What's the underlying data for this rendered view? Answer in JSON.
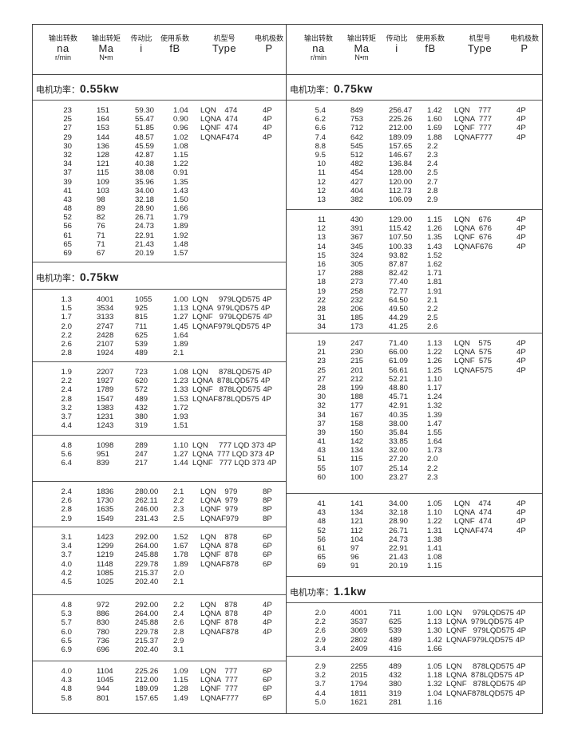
{
  "header": {
    "columns": [
      {
        "cn": "输出转数",
        "sym": "na",
        "unit": "r/min"
      },
      {
        "cn": "输出转矩",
        "sym": "Ma",
        "unit": "N•m"
      },
      {
        "cn": "传动比",
        "sym": "i",
        "unit": ""
      },
      {
        "cn": "使用系数",
        "sym": "fB",
        "unit": ""
      },
      {
        "cn": "机型号",
        "sym": "Type",
        "unit": ""
      },
      {
        "cn": "电机极数",
        "sym": "P",
        "unit": ""
      }
    ]
  },
  "left": [
    {
      "kind": "title",
      "label": "电机功率：",
      "power": "0.55kw"
    },
    {
      "kind": "group",
      "rows": [
        [
          "23",
          "151",
          "59.30",
          "1.04"
        ],
        [
          "25",
          "164",
          "55.47",
          "0.90"
        ],
        [
          "27",
          "153",
          "51.85",
          "0.96"
        ],
        [
          "29",
          "144",
          "48.57",
          "1.02"
        ],
        [
          "30",
          "136",
          "45.59",
          "1.08"
        ],
        [
          "32",
          "128",
          "42.87",
          "1.15"
        ],
        [
          "34",
          "121",
          "40.38",
          "1.22"
        ],
        [
          "37",
          "115",
          "38.08",
          "0.91"
        ],
        [
          "39",
          "109",
          "35.96",
          "1.35"
        ],
        [
          "41",
          "103",
          "34.00",
          "1.43"
        ],
        [
          "43",
          "98",
          "32.18",
          "1.50"
        ],
        [
          "48",
          "89",
          "28.90",
          "1.66"
        ],
        [
          "52",
          "82",
          "26.71",
          "1.79"
        ],
        [
          "56",
          "76",
          "24.73",
          "1.89"
        ],
        [
          "61",
          "71",
          "22.91",
          "1.92"
        ],
        [
          "65",
          "71",
          "21.43",
          "1.48"
        ],
        [
          "69",
          "67",
          "20.19",
          "1.57"
        ]
      ],
      "types": [
        [
          "LQN    474",
          "4P"
        ],
        [
          "LQNA  474",
          "4P"
        ],
        [
          "LQNF  474",
          "4P"
        ],
        [
          "LQNAF474",
          "4P"
        ]
      ]
    },
    {
      "kind": "title",
      "label": "电机功率：",
      "power": "0.75kw"
    },
    {
      "kind": "group",
      "wide": true,
      "rows": [
        [
          "1.3",
          "4001",
          "1055",
          "1.00"
        ],
        [
          "1.5",
          "3534",
          "925",
          "1.13"
        ],
        [
          "1.7",
          "3133",
          "815",
          "1.27"
        ],
        [
          "2.0",
          "2747",
          "711",
          "1.45"
        ],
        [
          "2.2",
          "2428",
          "625",
          "1.64"
        ],
        [
          "2.6",
          "2107",
          "539",
          "1.89"
        ],
        [
          "2.8",
          "1924",
          "489",
          "2.1"
        ]
      ],
      "types": [
        [
          "LQN     979LQD575",
          "4P"
        ],
        [
          "LQNA  979LQD575",
          "4P"
        ],
        [
          "LQNF   979LQD575",
          "4P"
        ],
        [
          "LQNAF979LQD575",
          "4P"
        ]
      ]
    },
    {
      "kind": "group",
      "wide": true,
      "rows": [
        [
          "1.9",
          "2207",
          "723",
          "1.08"
        ],
        [
          "2.2",
          "1927",
          "620",
          "1.23"
        ],
        [
          "2.4",
          "1789",
          "572",
          "1.33"
        ],
        [
          "2.8",
          "1547",
          "489",
          "1.53"
        ],
        [
          "3.2",
          "1383",
          "432",
          "1.72"
        ],
        [
          "3.7",
          "1231",
          "380",
          "1.93"
        ],
        [
          "4.4",
          "1243",
          "319",
          "1.51"
        ]
      ],
      "types": [
        [
          "LQN     878LQD575",
          "4P"
        ],
        [
          "LQNA  878LQD575",
          "4P"
        ],
        [
          "LQNF   878LQD575",
          "4P"
        ],
        [
          "LQNAF878LQD575",
          "4P"
        ]
      ]
    },
    {
      "kind": "group",
      "wide": true,
      "rows": [
        [
          "4.8",
          "1098",
          "289",
          "1.10"
        ],
        [
          "5.6",
          "951",
          "247",
          "1.27"
        ],
        [
          "6.4",
          "839",
          "217",
          "1.44"
        ]
      ],
      "types": [
        [
          "LQN     777 LQD 373",
          "4P"
        ],
        [
          "LQNA  777 LQD 373",
          "4P"
        ],
        [
          "LQNF   777 LQD 373",
          "4P"
        ]
      ]
    },
    {
      "kind": "group",
      "rows": [
        [
          "2.4",
          "1836",
          "280.00",
          "2.1"
        ],
        [
          "2.6",
          "1730",
          "262.11",
          "2.2"
        ],
        [
          "2.8",
          "1635",
          "246.00",
          "2.3"
        ],
        [
          "2.9",
          "1549",
          "231.43",
          "2.5"
        ]
      ],
      "types": [
        [
          "LQN    979",
          "8P"
        ],
        [
          "LQNA  979",
          "8P"
        ],
        [
          "LQNF  979",
          "8P"
        ],
        [
          "LQNAF979",
          "8P"
        ]
      ]
    },
    {
      "kind": "group",
      "rows": [
        [
          "3.1",
          "1423",
          "292.00",
          "1.52"
        ],
        [
          "3.4",
          "1299",
          "264.00",
          "1.67"
        ],
        [
          "3.7",
          "1219",
          "245.88",
          "1.78"
        ],
        [
          "4.0",
          "1148",
          "229.78",
          "1.89"
        ],
        [
          "4.2",
          "1085",
          "215.37",
          "2.0"
        ],
        [
          "4.5",
          "1025",
          "202.40",
          "2.1"
        ]
      ],
      "types": [
        [
          "LQN    878",
          "6P"
        ],
        [
          "LQNA  878",
          "6P"
        ],
        [
          "LQNF  878",
          "6P"
        ],
        [
          "LQNAF878",
          "6P"
        ]
      ]
    },
    {
      "kind": "group",
      "rows": [
        [
          "4.8",
          "972",
          "292.00",
          "2.2"
        ],
        [
          "5.3",
          "886",
          "264.00",
          "2.4"
        ],
        [
          "5.7",
          "830",
          "245.88",
          "2.6"
        ],
        [
          "6.0",
          "780",
          "229.78",
          "2.8"
        ],
        [
          "6.5",
          "736",
          "215.37",
          "2.9"
        ],
        [
          "6.9",
          "696",
          "202.40",
          "3.1"
        ]
      ],
      "types": [
        [
          "LQN    878",
          "4P"
        ],
        [
          "LQNA  878",
          "4P"
        ],
        [
          "LQNF  878",
          "4P"
        ],
        [
          "LQNAF878",
          "4P"
        ]
      ]
    },
    {
      "kind": "group",
      "rows": [
        [
          "4.0",
          "1104",
          "225.26",
          "1.09"
        ],
        [
          "4.3",
          "1045",
          "212.00",
          "1.15"
        ],
        [
          "4.8",
          "944",
          "189.09",
          "1.28"
        ],
        [
          "5.8",
          "801",
          "157.65",
          "1.49"
        ]
      ],
      "types": [
        [
          "LQN    777",
          "6P"
        ],
        [
          "LQNA  777",
          "6P"
        ],
        [
          "LQNF  777",
          "6P"
        ],
        [
          "LQNAF777",
          "6P"
        ]
      ]
    }
  ],
  "right": [
    {
      "kind": "title",
      "label": "电机功率：",
      "power": "0.75kw"
    },
    {
      "kind": "group",
      "rows": [
        [
          "5.4",
          "849",
          "256.47",
          "1.42"
        ],
        [
          "6.2",
          "753",
          "225.26",
          "1.60"
        ],
        [
          "6.6",
          "712",
          "212.00",
          "1.69"
        ],
        [
          "7.4",
          "642",
          "189.09",
          "1.88"
        ],
        [
          "8.8",
          "545",
          "157.65",
          "2.2"
        ],
        [
          "9.5",
          "512",
          "146.67",
          "2.3"
        ],
        [
          "10",
          "482",
          "136.84",
          "2.4"
        ],
        [
          "11",
          "454",
          "128.00",
          "2.5"
        ],
        [
          "12",
          "427",
          "120.00",
          "2.7"
        ],
        [
          "12",
          "404",
          "112.73",
          "2.8"
        ],
        [
          "13",
          "382",
          "106.09",
          "2.9"
        ]
      ],
      "types": [
        [
          "LQN    777",
          "4P"
        ],
        [
          "LQNA  777",
          "4P"
        ],
        [
          "LQNF  777",
          "4P"
        ],
        [
          "LQNAF777",
          "4P"
        ]
      ]
    },
    {
      "kind": "group",
      "rows": [
        [
          "11",
          "430",
          "129.00",
          "1.15"
        ],
        [
          "12",
          "391",
          "115.42",
          "1.26"
        ],
        [
          "13",
          "367",
          "107.50",
          "1.35"
        ],
        [
          "14",
          "345",
          "100.33",
          "1.43"
        ],
        [
          "15",
          "324",
          "93.82",
          "1.52"
        ],
        [
          "16",
          "305",
          "87.87",
          "1.62"
        ],
        [
          "17",
          "288",
          "82.42",
          "1.71"
        ],
        [
          "18",
          "273",
          "77.40",
          "1.81"
        ],
        [
          "19",
          "258",
          "72.77",
          "1.91"
        ],
        [
          "22",
          "232",
          "64.50",
          "2.1"
        ],
        [
          "28",
          "206",
          "49.50",
          "2.2"
        ],
        [
          "31",
          "185",
          "44.29",
          "2.5"
        ],
        [
          "34",
          "173",
          "41.25",
          "2.6"
        ]
      ],
      "types": [
        [
          "LQN    676",
          "4P"
        ],
        [
          "LQNA  676",
          "4P"
        ],
        [
          "LQNF  676",
          "4P"
        ],
        [
          "LQNAF676",
          "4P"
        ]
      ]
    },
    {
      "kind": "group",
      "rows": [
        [
          "19",
          "247",
          "71.40",
          "1.13"
        ],
        [
          "21",
          "230",
          "66.00",
          "1.22"
        ],
        [
          "23",
          "215",
          "61.09",
          "1.26"
        ],
        [
          "25",
          "201",
          "56.61",
          "1.25"
        ],
        [
          "27",
          "212",
          "52.21",
          "1.10"
        ],
        [
          "28",
          "199",
          "48.80",
          "1.17"
        ],
        [
          "30",
          "188",
          "45.71",
          "1.24"
        ],
        [
          "32",
          "177",
          "42.91",
          "1.32"
        ],
        [
          "34",
          "167",
          "40.35",
          "1.39"
        ],
        [
          "37",
          "158",
          "38.00",
          "1.47"
        ],
        [
          "39",
          "150",
          "35.84",
          "1.55"
        ],
        [
          "41",
          "142",
          "33.85",
          "1.64"
        ],
        [
          "43",
          "134",
          "32.00",
          "1.73"
        ],
        [
          "51",
          "115",
          "27.20",
          "2.0"
        ],
        [
          "55",
          "107",
          "25.14",
          "2.2"
        ],
        [
          "60",
          "100",
          "23.27",
          "2.3"
        ]
      ],
      "types": [
        [
          "LQN    575",
          "4P"
        ],
        [
          "LQNA  575",
          "4P"
        ],
        [
          "LQNF  575",
          "4P"
        ],
        [
          "LQNAF575",
          "4P"
        ]
      ]
    },
    {
      "kind": "group",
      "rows": [
        [
          "41",
          "141",
          "34.00",
          "1.05"
        ],
        [
          "43",
          "134",
          "32.18",
          "1.10"
        ],
        [
          "48",
          "121",
          "28.90",
          "1.22"
        ],
        [
          "52",
          "112",
          "26.71",
          "1.31"
        ],
        [
          "56",
          "104",
          "24.73",
          "1.38"
        ],
        [
          "61",
          "97",
          "22.91",
          "1.41"
        ],
        [
          "65",
          "96",
          "21.43",
          "1.08"
        ],
        [
          "69",
          "91",
          "20.19",
          "1.15"
        ]
      ],
      "types": [
        [
          "LQN    474",
          "4P"
        ],
        [
          "LQNA  474",
          "4P"
        ],
        [
          "LQNF  474",
          "4P"
        ],
        [
          "LQNAF474",
          "4P"
        ]
      ]
    },
    {
      "kind": "title",
      "label": "电机功率：",
      "power": "1.1kw"
    },
    {
      "kind": "group",
      "wide": true,
      "rows": [
        [
          "2.0",
          "4001",
          "711",
          "1.00"
        ],
        [
          "2.2",
          "3537",
          "625",
          "1.13"
        ],
        [
          "2.6",
          "3069",
          "539",
          "1.30"
        ],
        [
          "2.9",
          "2802",
          "489",
          "1.42"
        ],
        [
          "3.4",
          "2409",
          "416",
          "1.66"
        ]
      ],
      "types": [
        [
          "LQN     979LQD575",
          "4P"
        ],
        [
          "LQNA  979LQD575",
          "4P"
        ],
        [
          "LQNF   979LQD575",
          "4P"
        ],
        [
          "LQNAF979LQD575",
          "4P"
        ]
      ]
    },
    {
      "kind": "group",
      "wide": true,
      "rows": [
        [
          "2.9",
          "2255",
          "489",
          "1.05"
        ],
        [
          "3.2",
          "2015",
          "432",
          "1.18"
        ],
        [
          "3.7",
          "1794",
          "380",
          "1.32"
        ],
        [
          "4.4",
          "1811",
          "319",
          "1.04"
        ],
        [
          "5.0",
          "1621",
          "281",
          "1.16"
        ]
      ],
      "types": [
        [
          "LQN     878LQD575",
          "4P"
        ],
        [
          "LQNA  878LQD575",
          "4P"
        ],
        [
          "LQNF   878LQD575",
          "4P"
        ],
        [
          "LQNAF878LQD575",
          "4P"
        ]
      ]
    }
  ]
}
